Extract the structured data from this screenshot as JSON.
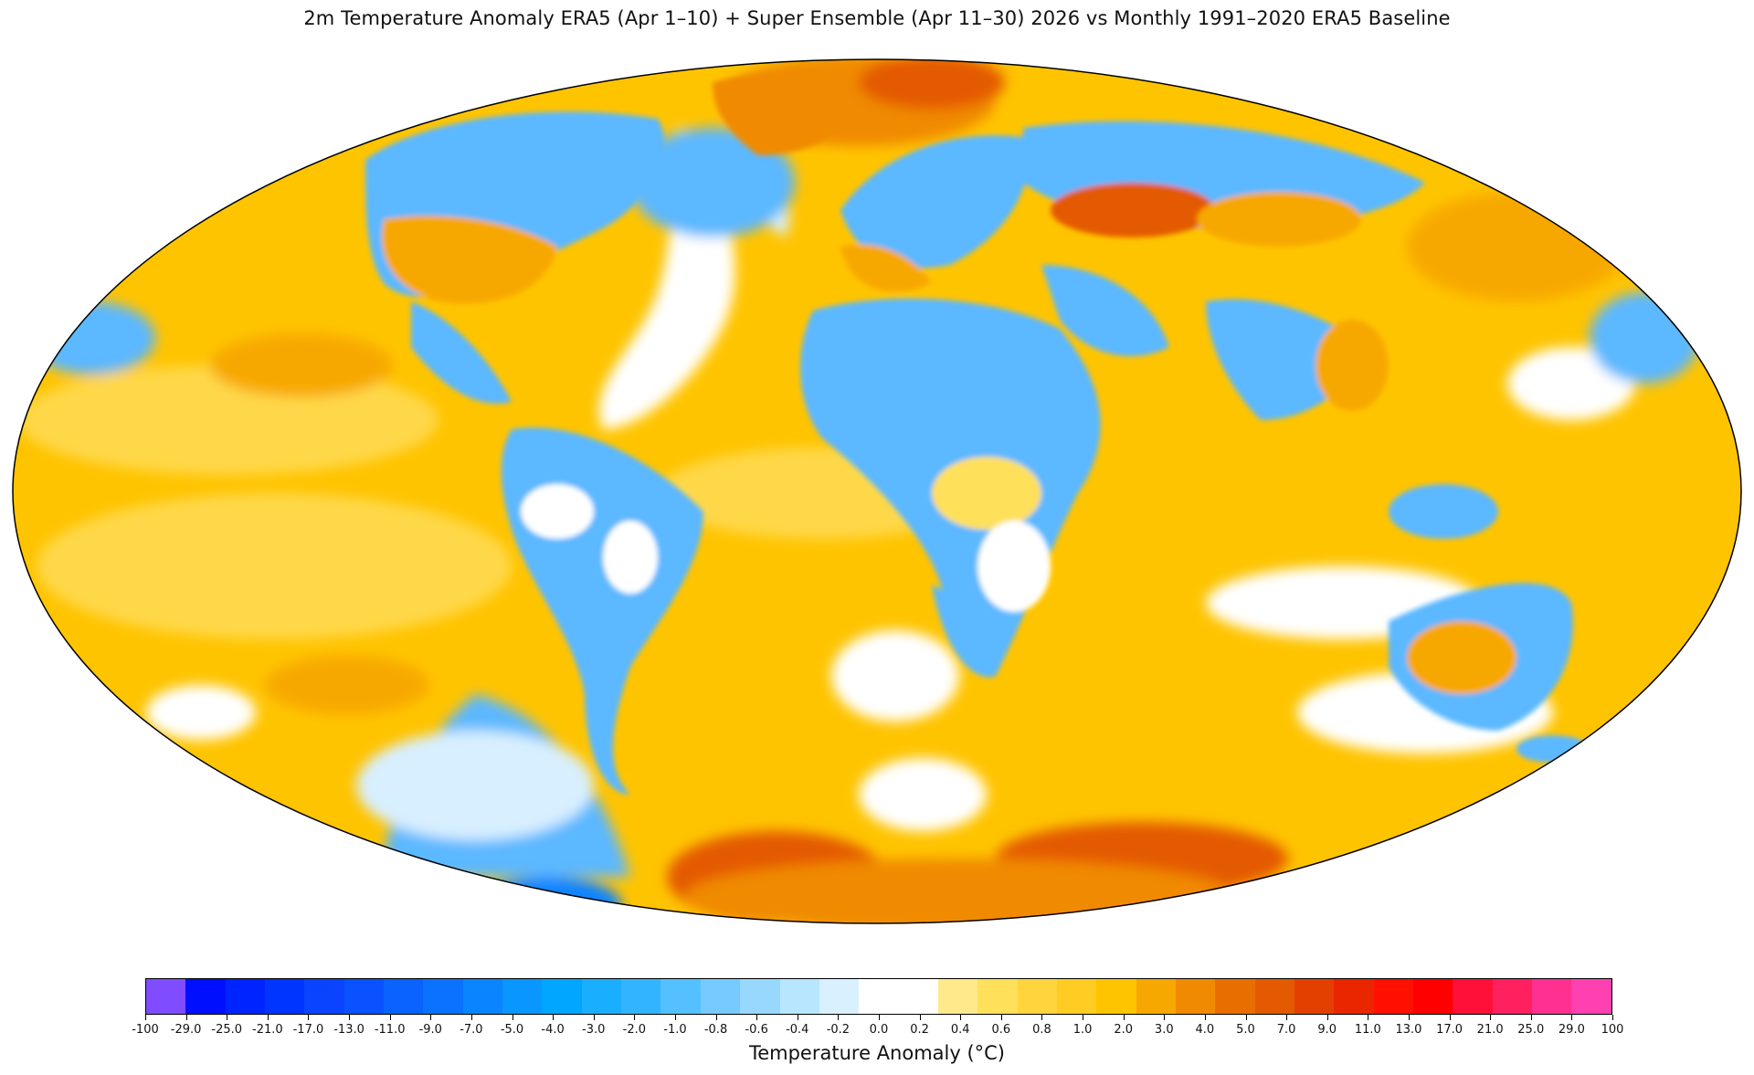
{
  "title": "2m Temperature Anomaly  ERA5 (Apr 1–10) + Super Ensemble (Apr 11–30) 2026  vs Monthly 1991–2020 ERA5 Baseline",
  "map": {
    "projection": "Mollweide",
    "colors": {
      "ocean_warm": "#ffc400",
      "warm_light": "#ffd84a",
      "warm_pale": "#ffe98a",
      "hot": "#f08a00",
      "hotter": "#e45a00",
      "neutral": "#ffffff",
      "cool_pale": "#d8efff",
      "cool": "#5bb8ff",
      "cold": "#1e8fff",
      "outline": "#000000"
    }
  },
  "colorbar": {
    "label": "Temperature Anomaly (°C)",
    "ticks": [
      "-100",
      "-29.0",
      "-25.0",
      "-21.0",
      "-17.0",
      "-13.0",
      "-11.0",
      "-9.0",
      "-7.0",
      "-5.0",
      "-4.0",
      "-3.0",
      "-2.0",
      "-1.0",
      "-0.8",
      "-0.6",
      "-0.4",
      "-0.2",
      "0.0",
      "0.2",
      "0.4",
      "0.6",
      "0.8",
      "1.0",
      "2.0",
      "3.0",
      "4.0",
      "5.0",
      "7.0",
      "9.0",
      "11.0",
      "13.0",
      "17.0",
      "21.0",
      "25.0",
      "29.0",
      "100"
    ],
    "colors": [
      "#7f4cff",
      "#0010ff",
      "#0024ff",
      "#0034ff",
      "#0a44ff",
      "#0a52ff",
      "#0a62ff",
      "#0a72ff",
      "#0a84ff",
      "#0a96ff",
      "#00a6ff",
      "#1aaeff",
      "#33b4ff",
      "#55c0ff",
      "#76caff",
      "#98d8ff",
      "#b8e6ff",
      "#d8f0ff",
      "#ffffff",
      "#ffffff",
      "#ffe98a",
      "#ffe05a",
      "#ffd43c",
      "#ffcc24",
      "#ffc400",
      "#f7a800",
      "#f08a00",
      "#e86e00",
      "#e45a00",
      "#e34000",
      "#ea2600",
      "#ff1000",
      "#ff0000",
      "#ff1038",
      "#ff2060",
      "#ff3090",
      "#ff40b0"
    ]
  }
}
